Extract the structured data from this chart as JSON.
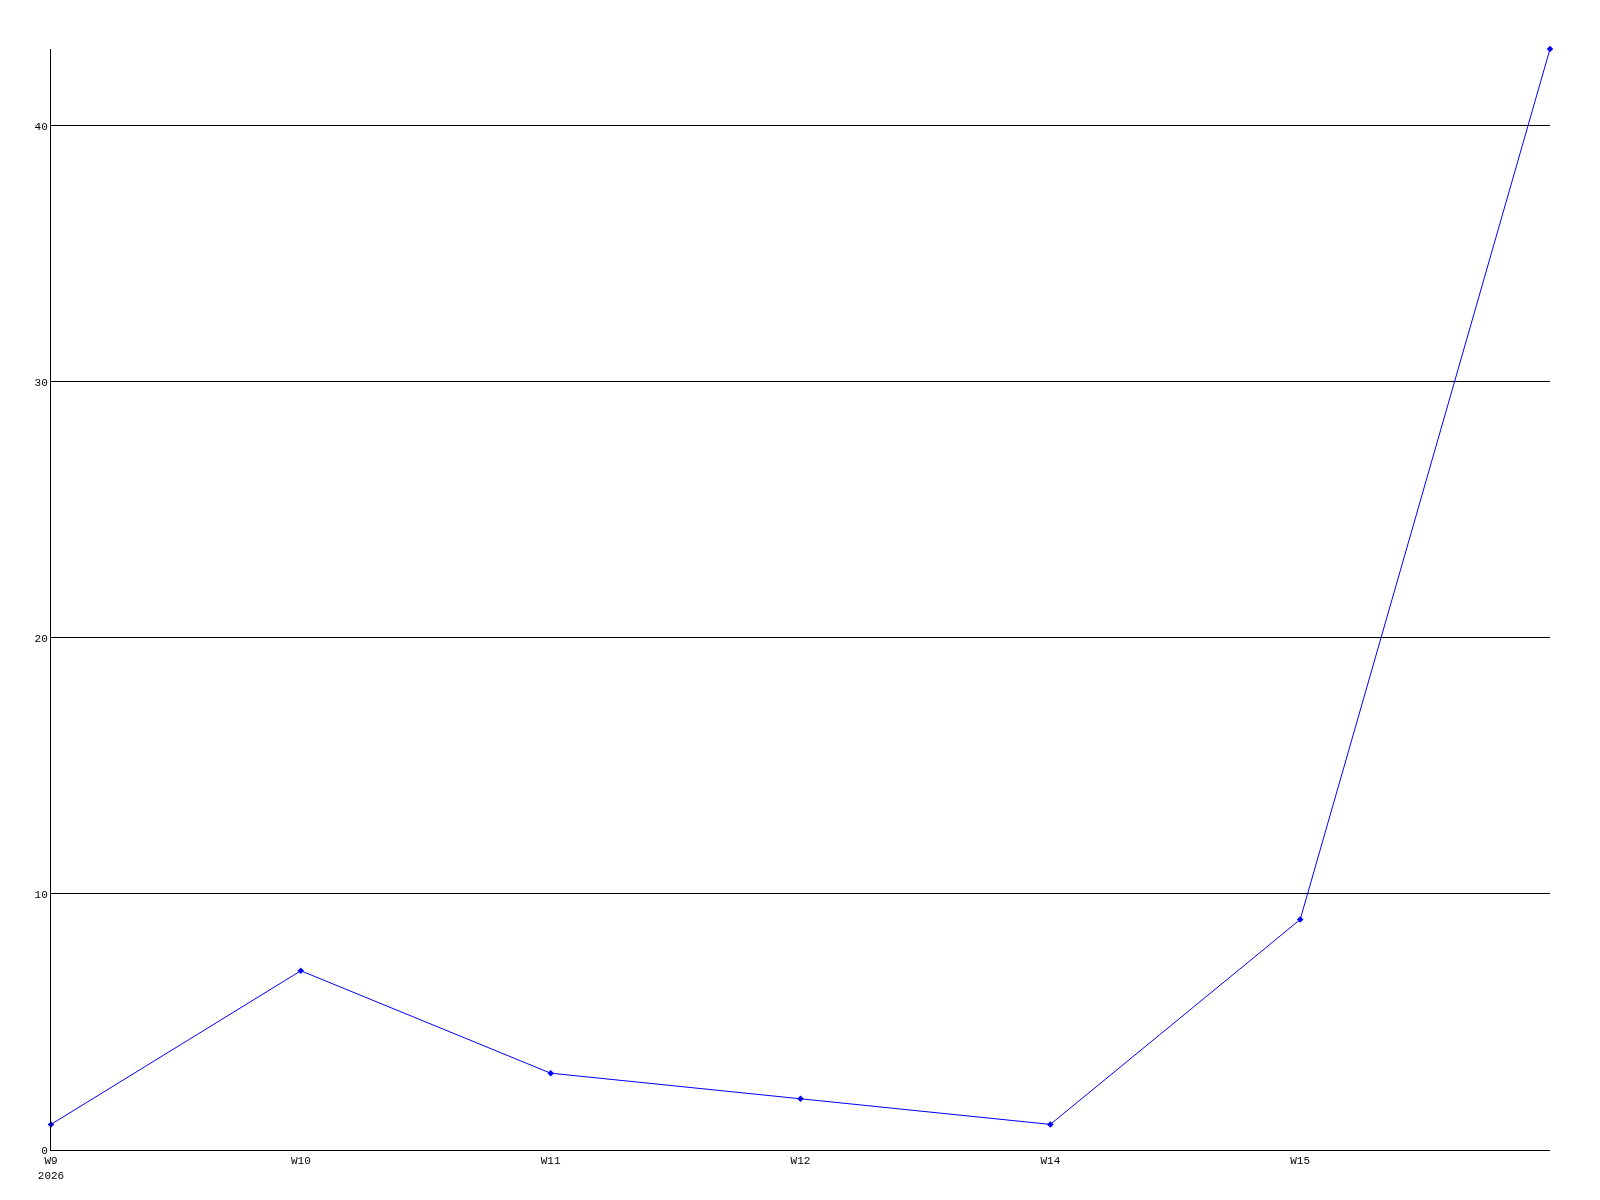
{
  "chart_data": {
    "type": "line",
    "categories": [
      "W9\n2026",
      "W10",
      "W11",
      "W12",
      "W14",
      "W15",
      null
    ],
    "series": [
      {
        "color": "#0000ff",
        "values": [
          1,
          7,
          3,
          2,
          1,
          9,
          43
        ]
      }
    ],
    "ylim": [
      0,
      43
    ],
    "yticks": [
      0,
      10,
      20,
      30,
      40
    ],
    "grid": "y",
    "marker": "diamond",
    "line_style": "solid"
  }
}
